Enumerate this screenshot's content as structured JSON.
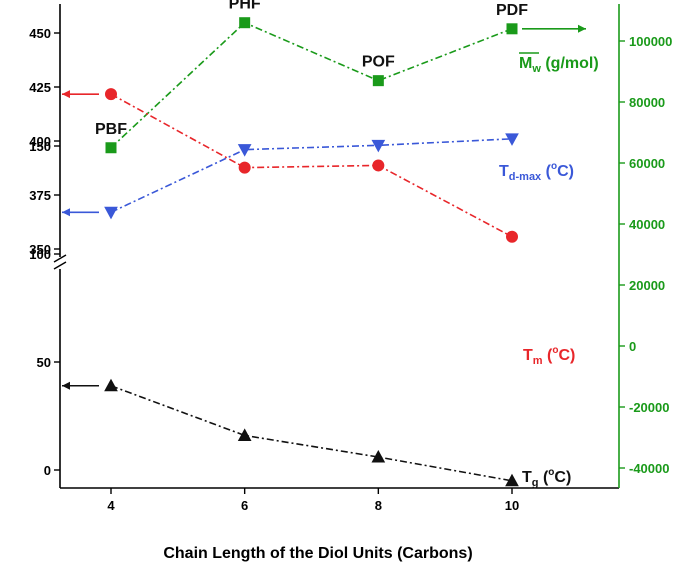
{
  "chart_data": {
    "type": "line",
    "xlabel": "Chain Length of the Diol Units (Carbons)",
    "x": [
      4,
      6,
      8,
      10
    ],
    "x_ticks": [
      4,
      6,
      8,
      10
    ],
    "xlim": [
      3,
      11.6
    ],
    "left_axis_ticks": [
      0,
      50,
      100,
      150,
      350,
      375,
      400,
      425,
      450
    ],
    "left_axis_break": "150-350",
    "right_axis_ticks": [
      -40000,
      -20000,
      0,
      20000,
      40000,
      60000,
      80000,
      100000
    ],
    "right_axis_color": "#1a9a1a",
    "point_labels": [
      "PBF",
      "PHF",
      "POF",
      "PDF"
    ],
    "series": [
      {
        "key": "mw",
        "label_main": "M",
        "label_sub": "w",
        "label_rest": " (g/mol)",
        "axis": "right",
        "values": [
          65000,
          106000,
          87000,
          104000
        ],
        "color": "#1a9a1a",
        "marker": "square"
      },
      {
        "key": "td",
        "label_main": "T",
        "label_sub": "d-max",
        "label_open": " (",
        "label_sup": "o",
        "label_close": "C)",
        "axis": "left",
        "values": [
          367,
          396,
          398,
          401
        ],
        "color": "#3a58d8",
        "marker": "triangle-down"
      },
      {
        "key": "tm",
        "label_main": "T",
        "label_sub": "m",
        "label_open": " (",
        "label_sup": "o",
        "label_close": "C)",
        "axis": "left",
        "values": [
          174,
          140,
          141,
          108
        ],
        "color": "#e8262a",
        "marker": "circle"
      },
      {
        "key": "tg",
        "label_main": "T",
        "label_sub": "g",
        "label_open": " (",
        "label_sup": "o",
        "label_close": "C)",
        "axis": "left",
        "values": [
          39,
          16,
          6,
          -5
        ],
        "color": "#111111",
        "marker": "triangle-up"
      }
    ],
    "grid": false,
    "legend": "none"
  }
}
